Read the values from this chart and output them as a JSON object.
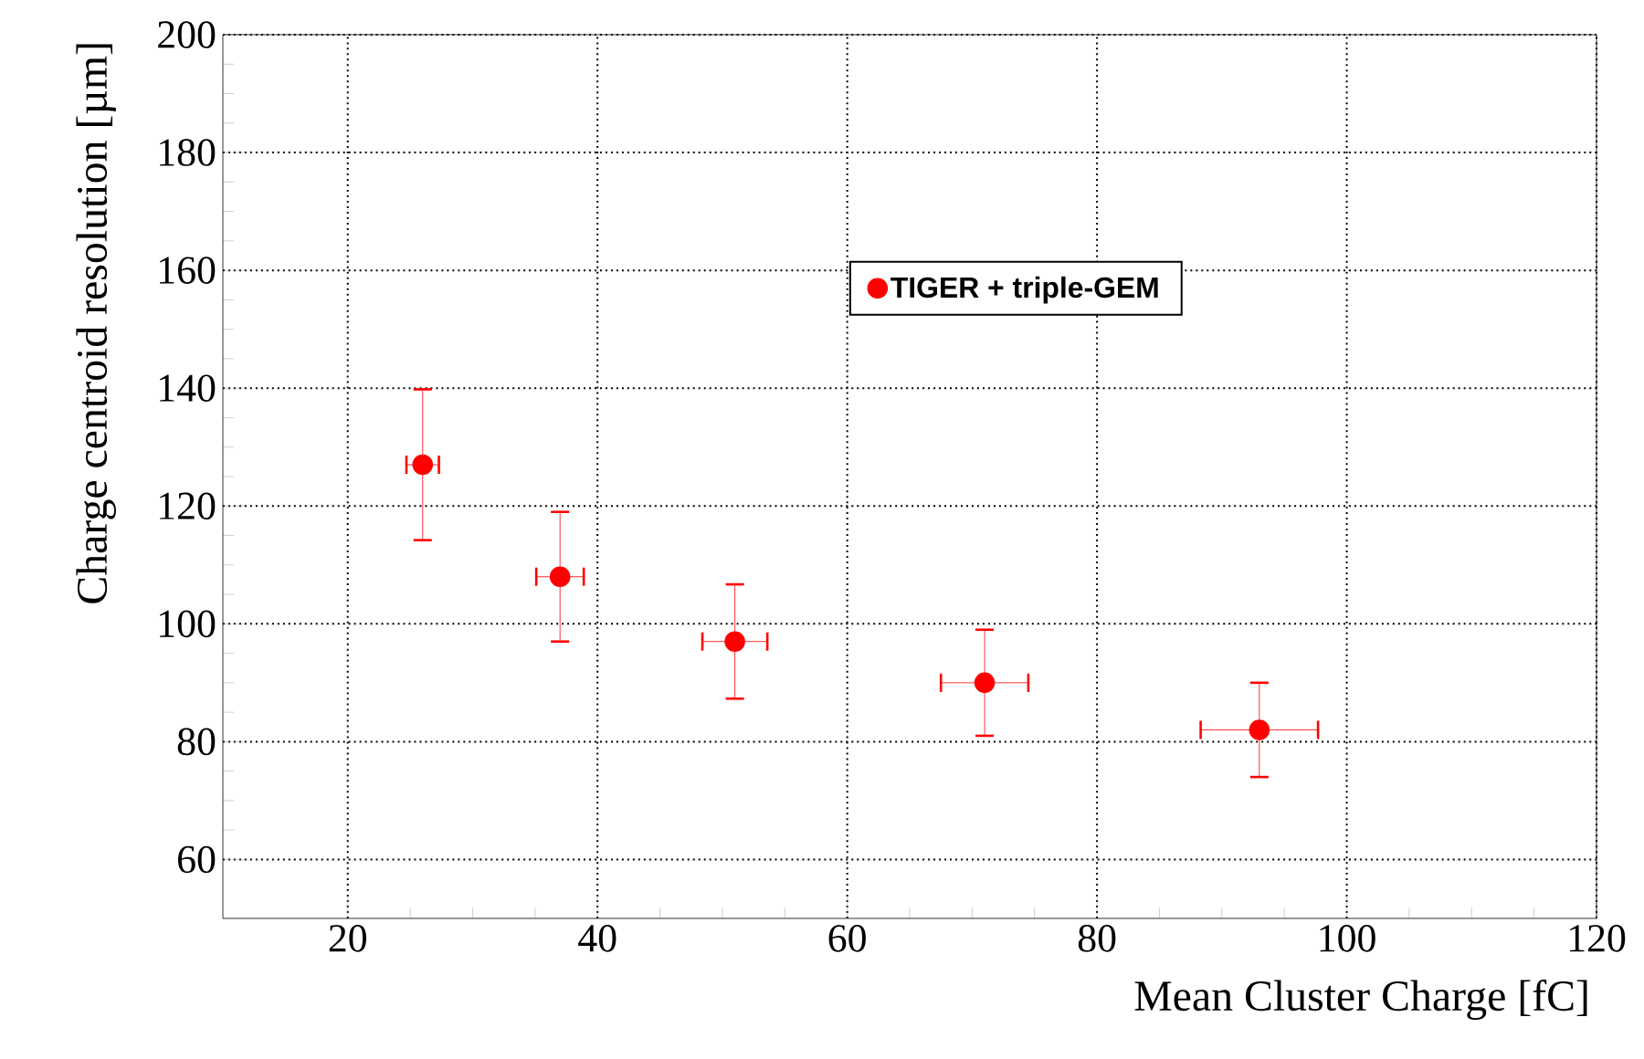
{
  "chart_data": {
    "type": "scatter",
    "xlabel": "Mean Cluster Charge [fC]",
    "ylabel": "Charge centroid resolution [µm]",
    "xlim": [
      10,
      120
    ],
    "xticks": [
      20,
      40,
      60,
      80,
      100,
      120
    ],
    "ylim": [
      50,
      200
    ],
    "yticks": [
      60,
      80,
      100,
      120,
      140,
      160,
      180,
      200
    ],
    "grid": true,
    "legend": "top right",
    "marker": "circle",
    "series": [
      {
        "name": "TIGER + triple-GEM",
        "color": "#ff0000",
        "x": [
          26,
          37,
          51,
          71,
          93
        ],
        "values": [
          127,
          108,
          97,
          90,
          82
        ],
        "errors": [
          12.8,
          11,
          9.7,
          9,
          8
        ],
        "xerrors": [
          1.3,
          1.9,
          2.6,
          3.5,
          4.7
        ]
      }
    ]
  }
}
